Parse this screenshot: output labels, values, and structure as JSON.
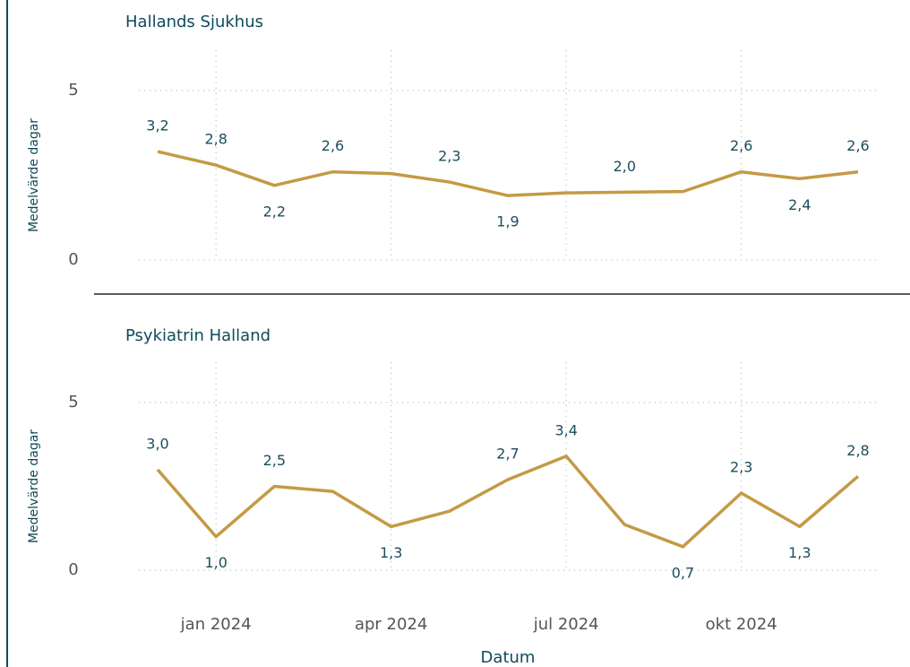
{
  "chart_data": [
    {
      "type": "line",
      "title": "Hallands Sjukhus",
      "y_label": "Medelvärde dagar",
      "x": [
        "2023-12",
        "2024-01",
        "2024-02",
        "2024-03",
        "2024-04",
        "2024-05",
        "2024-06",
        "2024-07",
        "2024-08",
        "2024-09",
        "2024-10",
        "2024-11",
        "2024-12"
      ],
      "xlim": [
        "2023-12",
        "2024-12"
      ],
      "xticks": [
        {
          "value": "2024-01",
          "label": "jan 2024"
        },
        {
          "value": "2024-04",
          "label": "apr 2024"
        },
        {
          "value": "2024-07",
          "label": "jul 2024"
        },
        {
          "value": "2024-10",
          "label": "okt 2024"
        }
      ],
      "ylim": [
        0,
        5
      ],
      "yticks": [
        0,
        5
      ],
      "grid": true,
      "series": [
        {
          "name": "Hallands Sjukhus",
          "color": "#c49a45",
          "values": [
            3.2,
            2.8,
            2.2,
            2.6,
            2.55,
            2.3,
            1.9,
            1.98,
            2.0,
            2.02,
            2.6,
            2.4,
            2.6
          ],
          "value_labels": [
            "3,2",
            "2,8",
            "2,2",
            "2,6",
            null,
            "2,3",
            "1,9",
            null,
            "2,0",
            null,
            "2,6",
            "2,4",
            "2,6"
          ]
        }
      ]
    },
    {
      "type": "line",
      "title": "Psykiatrin Halland",
      "y_label": "Medelvärde dagar",
      "x_label": "Datum",
      "x": [
        "2023-12",
        "2024-01",
        "2024-02",
        "2024-03",
        "2024-04",
        "2024-05",
        "2024-06",
        "2024-07",
        "2024-08",
        "2024-09",
        "2024-10",
        "2024-11",
        "2024-12"
      ],
      "xlim": [
        "2023-12",
        "2024-12"
      ],
      "xticks": [
        {
          "value": "2024-01",
          "label": "jan 2024"
        },
        {
          "value": "2024-04",
          "label": "apr 2024"
        },
        {
          "value": "2024-07",
          "label": "jul 2024"
        },
        {
          "value": "2024-10",
          "label": "okt 2024"
        }
      ],
      "ylim": [
        0,
        5
      ],
      "yticks": [
        0,
        5
      ],
      "grid": true,
      "series": [
        {
          "name": "Psykiatrin Halland",
          "color": "#c49a45",
          "values": [
            3.0,
            1.0,
            2.5,
            2.35,
            1.3,
            1.76,
            2.7,
            3.4,
            1.36,
            0.7,
            2.3,
            1.3,
            2.8
          ],
          "value_labels": [
            "3,0",
            "1,0",
            "2,5",
            null,
            "1,3",
            null,
            "2,7",
            "3,4",
            null,
            "0,7",
            "2,3",
            "1,3",
            "2,8"
          ]
        }
      ]
    }
  ]
}
